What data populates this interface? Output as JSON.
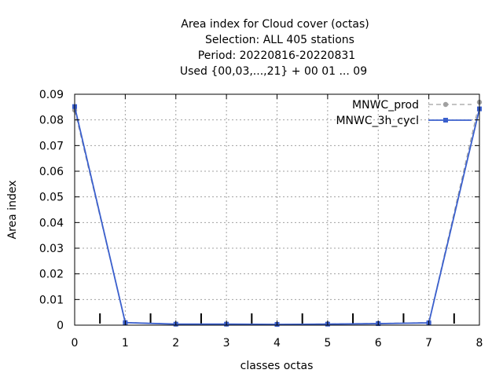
{
  "chart_data": {
    "type": "line",
    "title_lines": [
      "Area index  for Cloud cover (octas)",
      "Selection: ALL    405 stations",
      "Period: 20220816-20220831",
      "Used {00,03,...,21} + 00 01 ... 09"
    ],
    "xlabel": "classes octas",
    "ylabel": "Area index",
    "xlim": [
      0,
      8
    ],
    "ylim": [
      0,
      0.09
    ],
    "x_ticks": [
      "0",
      "1",
      "2",
      "3",
      "4",
      "5",
      "6",
      "7",
      "8"
    ],
    "y_ticks": [
      "0",
      "0.01",
      "0.02",
      "0.03",
      "0.04",
      "0.05",
      "0.06",
      "0.07",
      "0.08",
      "0.09"
    ],
    "grid": true,
    "legend_position": "top-right",
    "class_boundaries": [
      0.5,
      1.5,
      2.5,
      3.5,
      4.5,
      5.5,
      6.5,
      7.5
    ],
    "series": [
      {
        "name": "MNWC_prod",
        "color": "#a0a0a0",
        "style": "dashed",
        "x": [
          0,
          1,
          2,
          3,
          4,
          5,
          6,
          7,
          8
        ],
        "y": [
          0.0838,
          0.0011,
          0.0004,
          0.0004,
          0.0003,
          0.0005,
          0.0007,
          0.001,
          0.0869
        ]
      },
      {
        "name": "MNWC_3h_cycl",
        "color": "#3a5fcd",
        "style": "solid",
        "x": [
          0,
          1,
          2,
          3,
          4,
          5,
          6,
          7,
          8
        ],
        "y": [
          0.0852,
          0.001,
          0.0004,
          0.0004,
          0.0003,
          0.0004,
          0.0006,
          0.0009,
          0.0843
        ]
      }
    ]
  }
}
